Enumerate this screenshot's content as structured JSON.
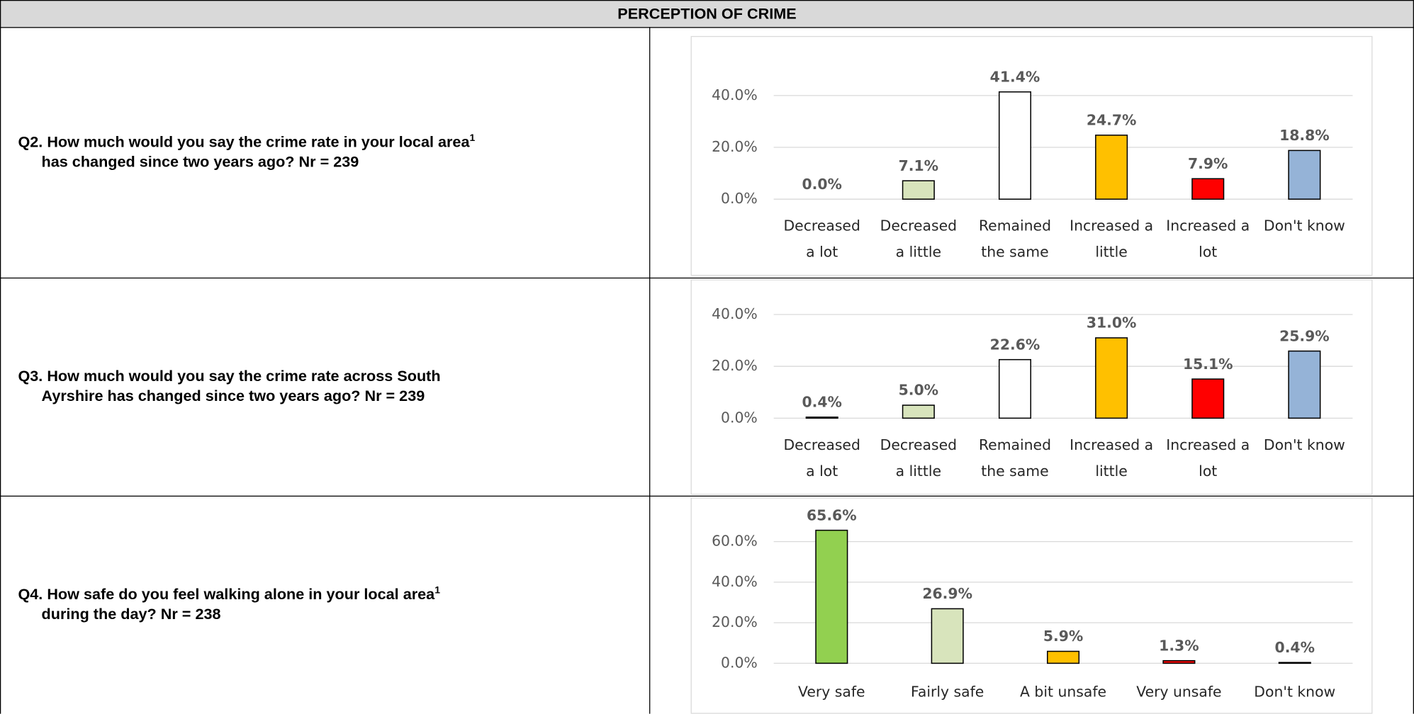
{
  "title": "PERCEPTION OF CRIME",
  "rows": [
    {
      "question": [
        "Q2. How much would you say the crime rate in your local area",
        "has changed since two years ago? Nr = 239"
      ],
      "superscript": "1"
    },
    {
      "question": [
        "Q3. How much would you say the crime rate across South",
        "Ayrshire has changed since two years ago? Nr = 239"
      ]
    },
    {
      "question": [
        "Q4. How safe do you feel walking alone in your local area",
        "during the day? Nr = 238"
      ],
      "superscript": "1"
    }
  ],
  "chart_data": [
    {
      "type": "bar",
      "categories": [
        "Decreased a lot",
        "Decreased a little",
        "Remained the same",
        "Increased a little",
        "Increased a lot",
        "Don't know"
      ],
      "values": [
        0.0,
        7.1,
        41.4,
        24.7,
        7.9,
        18.8
      ],
      "value_labels": [
        "0.0%",
        "7.1%",
        "41.4%",
        "24.7%",
        "7.9%",
        "18.8%"
      ],
      "colors": [
        "#ffffff",
        "#d8e4bc",
        "#ffffff",
        "#ffc000",
        "#ff0000",
        "#95b3d7"
      ],
      "ylim": [
        0,
        45
      ],
      "yticks": [
        {
          "value": 0,
          "label": "0.0%"
        },
        {
          "value": 20,
          "label": "20.0%"
        },
        {
          "value": 40,
          "label": "40.0%"
        }
      ],
      "grid": true
    },
    {
      "type": "bar",
      "categories": [
        "Decreased a lot",
        "Decreased a little",
        "Remained the same",
        "Increased a little",
        "Increased a lot",
        "Don't know"
      ],
      "values": [
        0.4,
        5.0,
        22.6,
        31.0,
        15.1,
        25.9
      ],
      "value_labels": [
        "0.4%",
        "5.0%",
        "22.6%",
        "31.0%",
        "15.1%",
        "25.9%"
      ],
      "colors": [
        "#ffffff",
        "#d8e4bc",
        "#ffffff",
        "#ffc000",
        "#ff0000",
        "#95b3d7"
      ],
      "ylim": [
        0,
        45
      ],
      "yticks": [
        {
          "value": 0,
          "label": "0.0%"
        },
        {
          "value": 20,
          "label": "20.0%"
        },
        {
          "value": 40,
          "label": "40.0%"
        }
      ],
      "grid": true
    },
    {
      "type": "bar",
      "categories": [
        "Very safe",
        "Fairly safe",
        "A bit unsafe",
        "Very unsafe",
        "Don't know"
      ],
      "values": [
        65.6,
        26.9,
        5.9,
        1.3,
        0.4
      ],
      "value_labels": [
        "65.6%",
        "26.9%",
        "5.9%",
        "1.3%",
        "0.4%"
      ],
      "colors": [
        "#92d050",
        "#d8e4bc",
        "#ffc000",
        "#ff0000",
        "#95b3d7"
      ],
      "ylim": [
        0,
        70
      ],
      "yticks": [
        {
          "value": 0,
          "label": "0.0%"
        },
        {
          "value": 20,
          "label": "20.0%"
        },
        {
          "value": 40,
          "label": "40.0%"
        },
        {
          "value": 60,
          "label": "60.0%"
        }
      ],
      "grid": true
    }
  ]
}
